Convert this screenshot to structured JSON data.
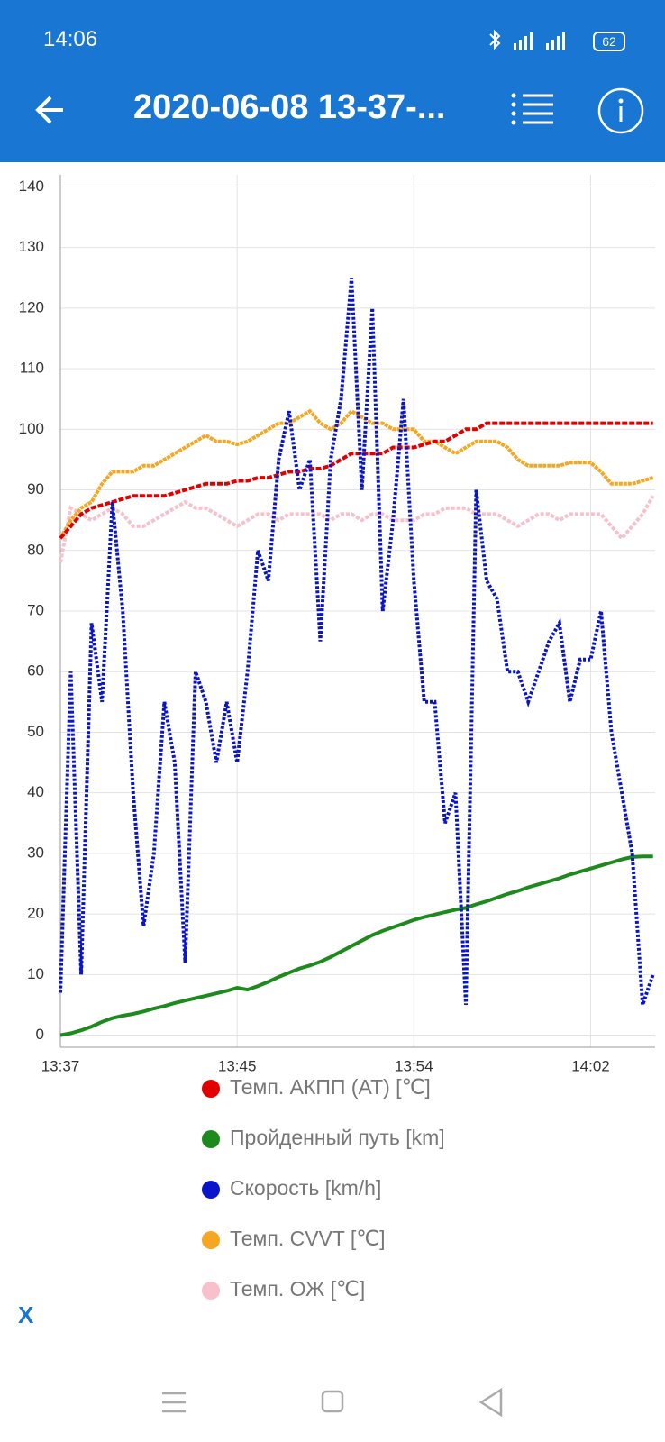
{
  "status_bar": {
    "time": "14:06",
    "battery": "62"
  },
  "header": {
    "title": "2020-06-08 13-37-..."
  },
  "chart_data": {
    "type": "line",
    "x": [
      0,
      0.5,
      1,
      1.5,
      2,
      2.5,
      3,
      3.5,
      4,
      4.5,
      5,
      5.5,
      6,
      6.5,
      7,
      7.5,
      8,
      8.5,
      9,
      9.5,
      10,
      10.5,
      11,
      11.5,
      12,
      12.5,
      13,
      13.5,
      14,
      14.5,
      15,
      15.5,
      16,
      16.5,
      17,
      17.5,
      18,
      18.5,
      19,
      19.5,
      20,
      20.5,
      21,
      21.5,
      22,
      22.5,
      23,
      23.5,
      24,
      24.5,
      25,
      25.5,
      26,
      26.5,
      27,
      27.5,
      28,
      28.5
    ],
    "xlim": [
      0,
      28.6
    ],
    "xticks": [
      {
        "value": 0,
        "label": "13:37"
      },
      {
        "value": 8.5,
        "label": "13:45"
      },
      {
        "value": 17,
        "label": "13:54"
      },
      {
        "value": 25.5,
        "label": "14:02"
      }
    ],
    "ylim": [
      -2,
      142
    ],
    "yticks": [
      0,
      10,
      20,
      30,
      40,
      50,
      60,
      70,
      80,
      90,
      100,
      110,
      120,
      130,
      140
    ],
    "grid": true,
    "series": [
      {
        "name": "Темп. АКПП (AT) [℃]",
        "color": "#e00000",
        "values": [
          82,
          84,
          86,
          87,
          87.5,
          88,
          88.5,
          89,
          89,
          89,
          89,
          89.5,
          90,
          90.5,
          91,
          91,
          91,
          91.5,
          91.5,
          92,
          92,
          92.5,
          93,
          93,
          93.5,
          93.5,
          94,
          95,
          96,
          96,
          96,
          96,
          97,
          97,
          97,
          97.5,
          98,
          98,
          99,
          100,
          100,
          101,
          101,
          101,
          101,
          101,
          101,
          101,
          101,
          101,
          101,
          101,
          101,
          101,
          101,
          101,
          101,
          101
        ]
      },
      {
        "name": "Пройденный путь [km]",
        "color": "#1e8a1e",
        "values": [
          0,
          0.3,
          0.8,
          1.4,
          2.2,
          2.8,
          3.2,
          3.5,
          3.9,
          4.4,
          4.8,
          5.3,
          5.7,
          6.1,
          6.5,
          6.9,
          7.3,
          7.8,
          7.5,
          8.1,
          8.8,
          9.6,
          10.3,
          11,
          11.5,
          12.1,
          12.9,
          13.8,
          14.7,
          15.6,
          16.5,
          17.2,
          17.8,
          18.4,
          19,
          19.5,
          19.9,
          20.3,
          20.7,
          21,
          21.6,
          22.1,
          22.7,
          23.3,
          23.8,
          24.4,
          24.9,
          25.4,
          25.9,
          26.5,
          27,
          27.5,
          28,
          28.5,
          29,
          29.4,
          29.5,
          29.5
        ]
      },
      {
        "name": "Скорость [km/h]",
        "color": "#0a14c8",
        "values": [
          7,
          60,
          10,
          68,
          55,
          88,
          70,
          40,
          18,
          30,
          55,
          45,
          12,
          60,
          55,
          45,
          55,
          45,
          60,
          80,
          75,
          95,
          103,
          90,
          95,
          65,
          95,
          105,
          125,
          90,
          120,
          70,
          85,
          105,
          75,
          55,
          55,
          35,
          40,
          5,
          90,
          75,
          72,
          60,
          60,
          55,
          60,
          65,
          68,
          55,
          62,
          62,
          70,
          50,
          40,
          30,
          5,
          10
        ]
      },
      {
        "name": "Темп. CVVT [℃]",
        "color": "#f5a623",
        "values": [
          82,
          85,
          87,
          88,
          91,
          93,
          93,
          93,
          94,
          94,
          95,
          96,
          97,
          98,
          99,
          98,
          98,
          97.5,
          98,
          99,
          100,
          101,
          101,
          102,
          103,
          101,
          100,
          101,
          103,
          102,
          101,
          101,
          100,
          100,
          100,
          98,
          98,
          97,
          96,
          97,
          98,
          98,
          98,
          97,
          95,
          94,
          94,
          94,
          94,
          94.5,
          94.5,
          94.5,
          93,
          91,
          91,
          91,
          91.5,
          92
        ]
      },
      {
        "name": "Темп. ОЖ [℃]",
        "color": "#f7c0cb",
        "values": [
          78,
          87,
          86,
          85,
          86,
          87,
          86,
          84,
          84,
          85,
          86,
          87,
          88,
          87,
          87,
          86,
          85,
          84,
          85,
          86,
          86,
          85,
          86,
          86,
          86,
          86,
          85,
          86,
          86,
          85,
          86,
          86,
          85,
          85,
          85,
          86,
          86,
          87,
          87,
          87,
          86,
          86,
          86,
          85,
          84,
          85,
          86,
          86,
          85,
          86,
          86,
          86,
          86,
          84,
          82,
          84,
          86,
          89
        ]
      }
    ]
  },
  "close_label": "X"
}
